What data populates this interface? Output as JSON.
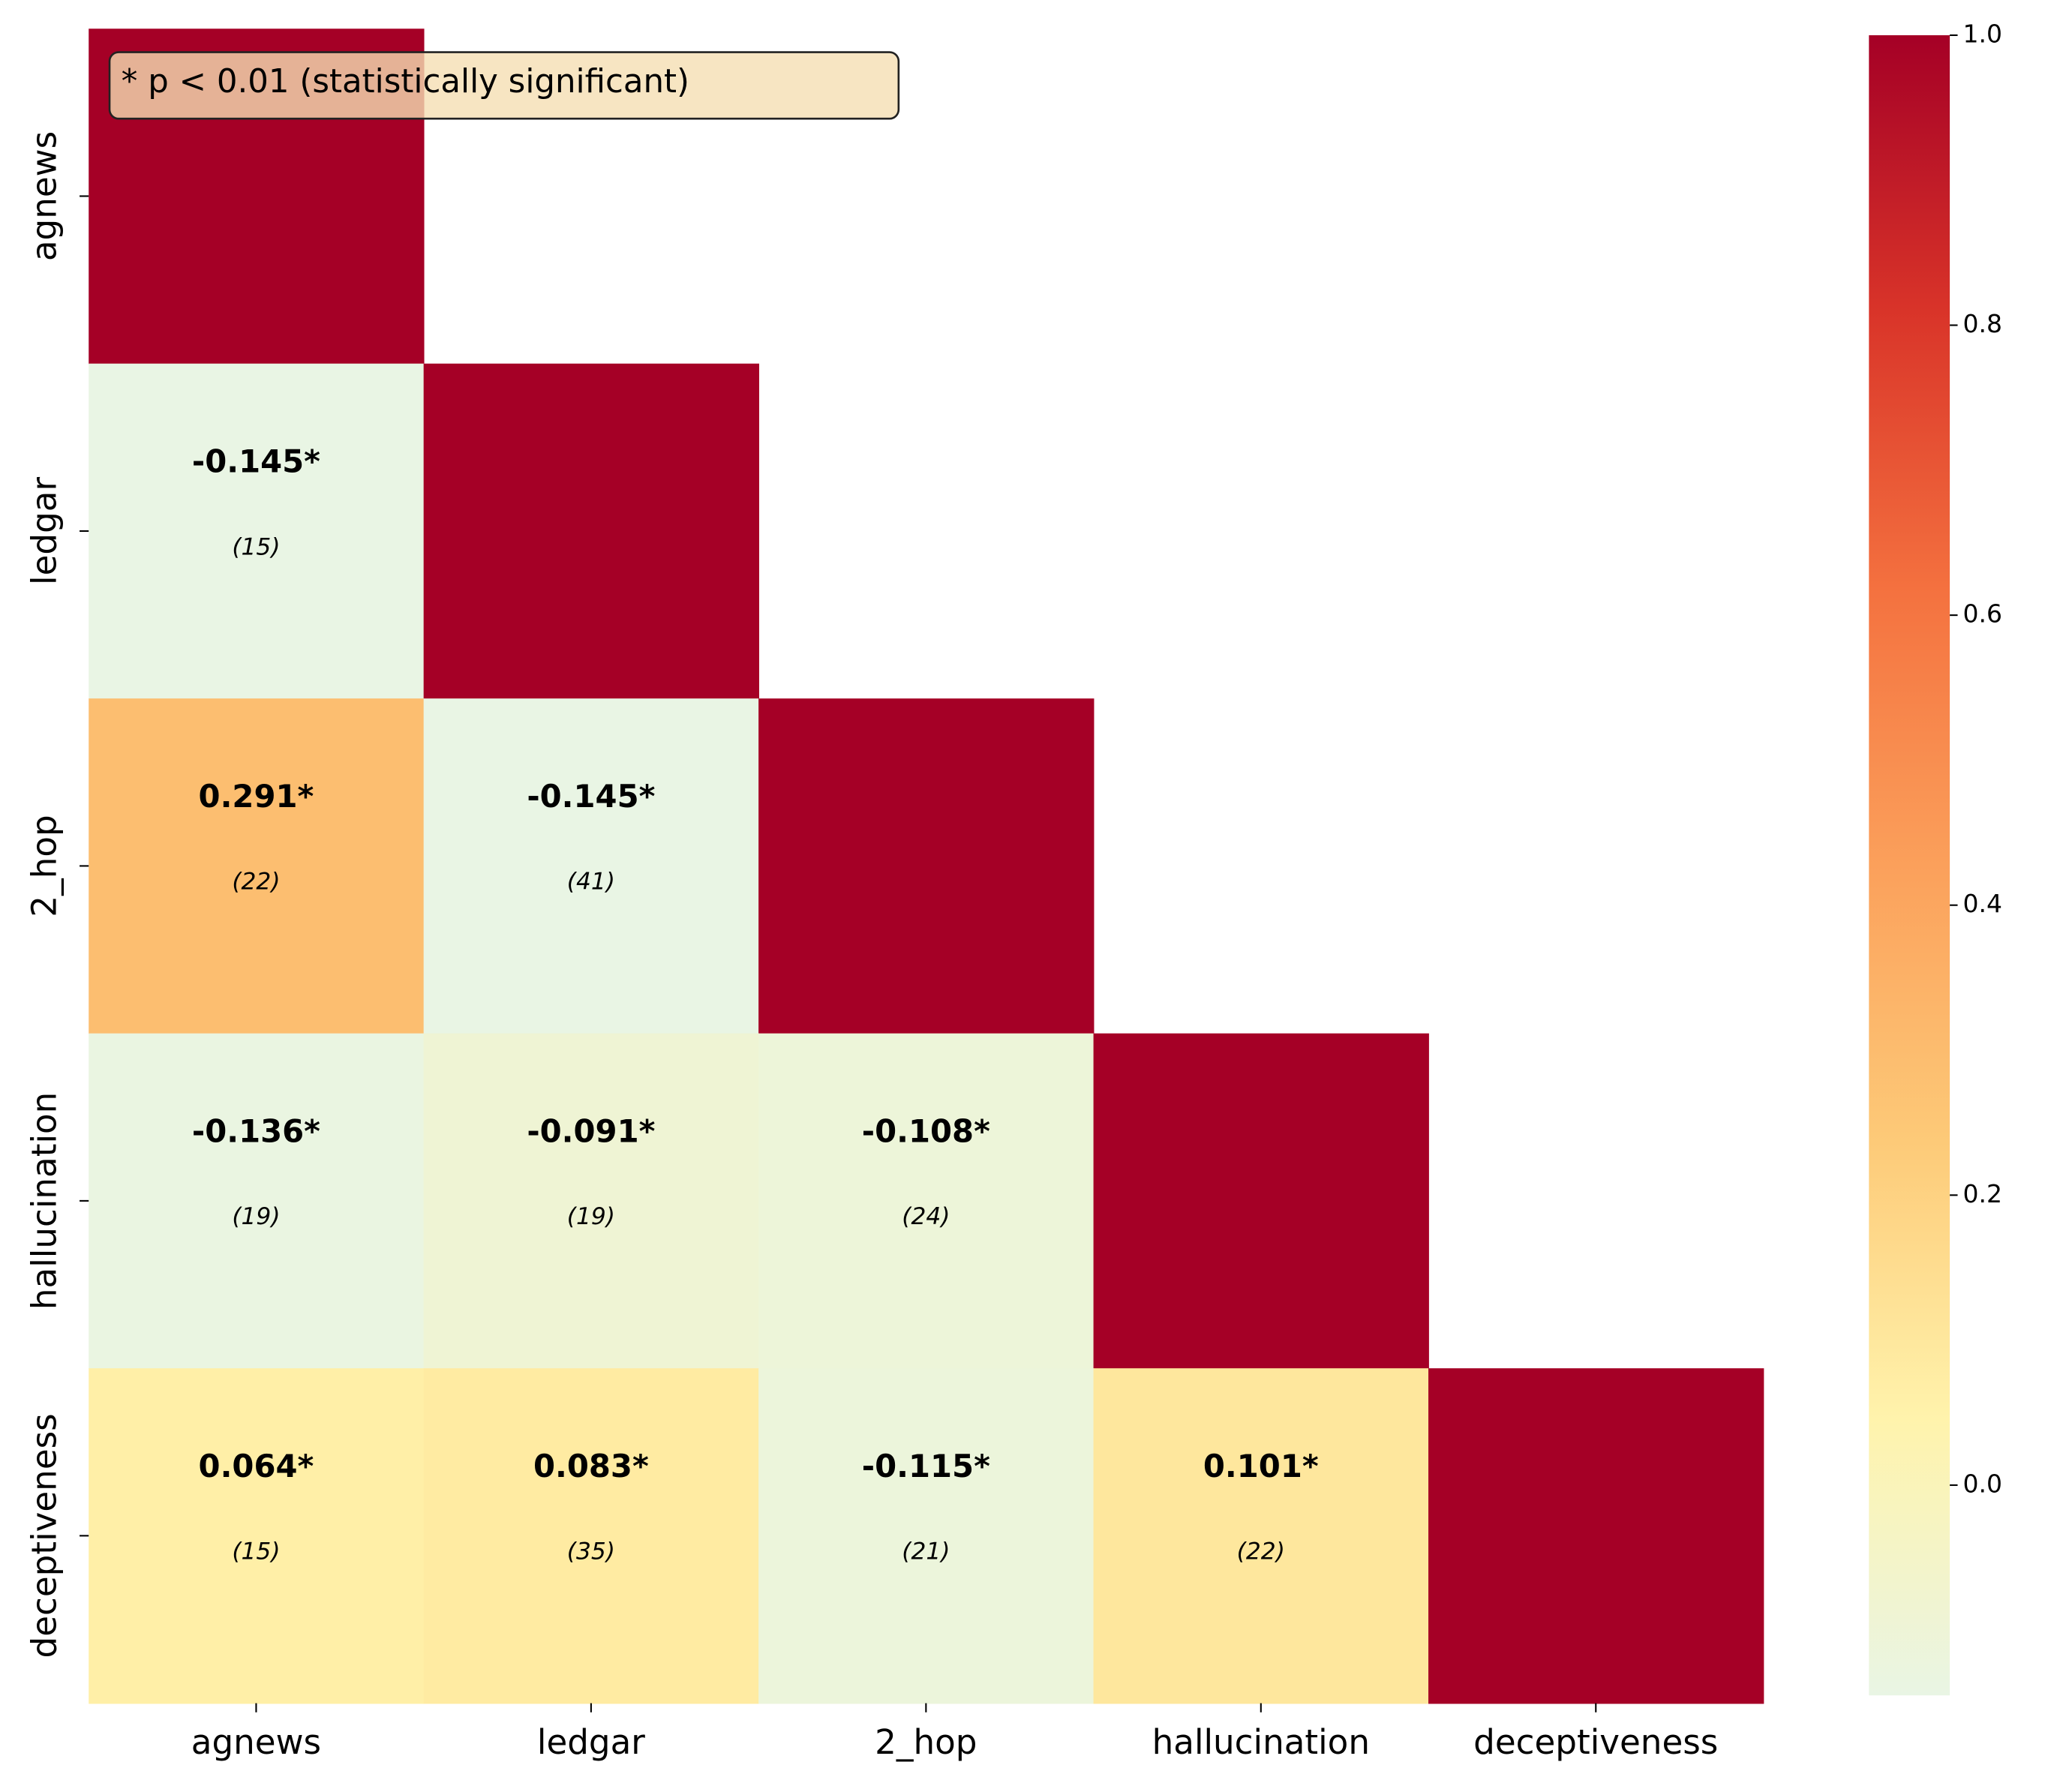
{
  "chart_data": {
    "type": "heatmap",
    "annotation": "* p < 0.01 (statistically significant)",
    "categories": [
      "agnews",
      "ledgar",
      "2_hop",
      "hallucination",
      "deceptiveness"
    ],
    "values": [
      [
        1.0,
        null,
        null,
        null,
        null
      ],
      [
        -0.145,
        1.0,
        null,
        null,
        null
      ],
      [
        0.291,
        -0.145,
        1.0,
        null,
        null
      ],
      [
        -0.136,
        -0.091,
        -0.108,
        1.0,
        null
      ],
      [
        0.064,
        0.083,
        -0.115,
        0.101,
        1.0
      ]
    ],
    "value_labels": [
      [
        null,
        null,
        null,
        null,
        null
      ],
      [
        "-0.145*",
        null,
        null,
        null,
        null
      ],
      [
        "0.291*",
        "-0.145*",
        null,
        null,
        null
      ],
      [
        "-0.136*",
        "-0.091*",
        "-0.108*",
        null,
        null
      ],
      [
        "0.064*",
        "0.083*",
        "-0.115*",
        "0.101*",
        null
      ]
    ],
    "counts": [
      [
        null,
        null,
        null,
        null,
        null
      ],
      [
        15,
        null,
        null,
        null,
        null
      ],
      [
        22,
        41,
        null,
        null,
        null
      ],
      [
        19,
        19,
        24,
        null,
        null
      ],
      [
        15,
        35,
        21,
        22,
        null
      ]
    ],
    "count_labels": [
      [
        null,
        null,
        null,
        null,
        null
      ],
      [
        "(15)",
        null,
        null,
        null,
        null
      ],
      [
        "(22)",
        "(41)",
        null,
        null,
        null
      ],
      [
        "(19)",
        "(19)",
        "(24)",
        null,
        null
      ],
      [
        "(15)",
        "(35)",
        "(21)",
        "(22)",
        null
      ]
    ],
    "zlim": [
      -0.145,
      1.0
    ],
    "zticks": [
      {
        "value": 0,
        "label": "0.0"
      },
      0.2,
      0.4,
      0.6,
      0.8,
      {
        "value": 1,
        "label": "1.0"
      }
    ],
    "colormap": [
      "#e9f5e4",
      "#fff3ac",
      "#fdca78",
      "#fba05b",
      "#f4713f",
      "#d93429",
      "#a50026"
    ]
  }
}
